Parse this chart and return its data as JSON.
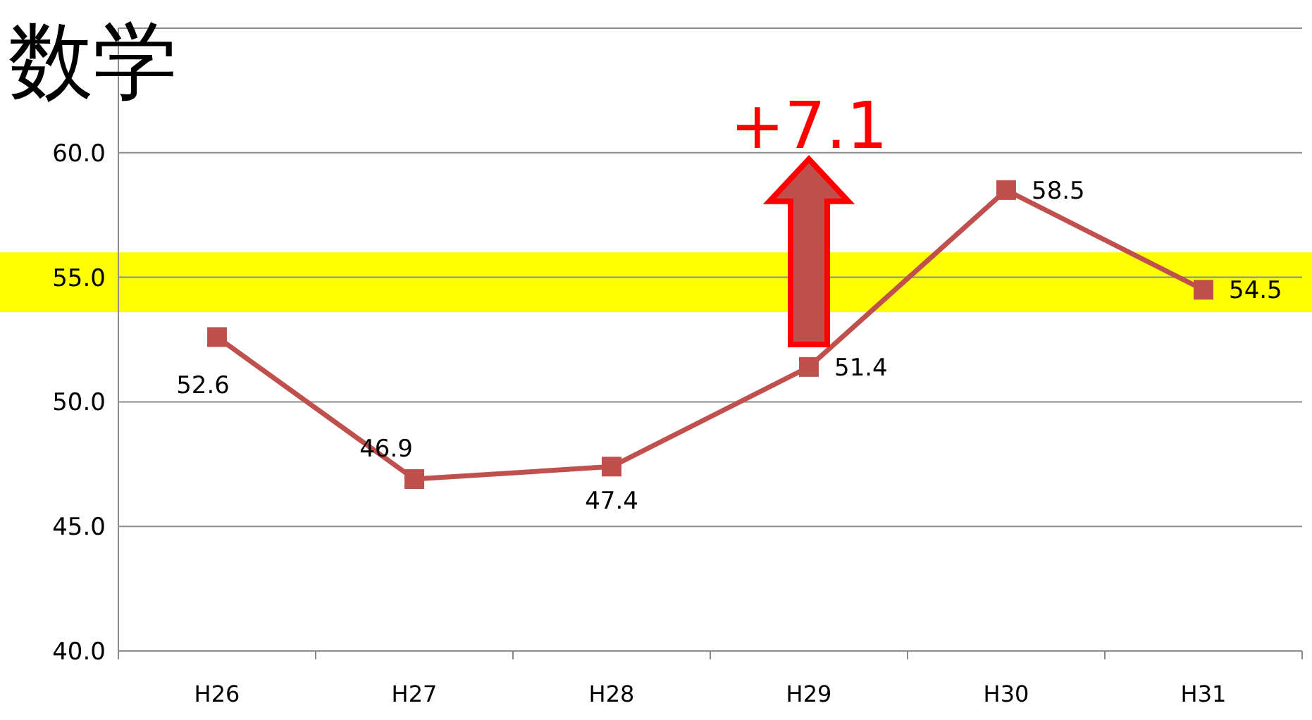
{
  "chart_data": {
    "type": "line",
    "title": "数学",
    "categories": [
      "H26",
      "H27",
      "H28",
      "H29",
      "H30",
      "H31"
    ],
    "series": [
      {
        "color": "#c0504d",
        "values": [
          52.6,
          46.9,
          47.4,
          51.4,
          58.5,
          54.5
        ]
      }
    ],
    "ylim": [
      40,
      65
    ],
    "yticks": [
      {
        "value": 40,
        "label": "40.0"
      },
      {
        "value": 45,
        "label": "45.0"
      },
      {
        "value": 50,
        "label": "50.0"
      },
      {
        "value": 55,
        "label": "55.0"
      },
      {
        "value": 60,
        "label": "60.0"
      },
      {
        "value": 65,
        "label": null
      }
    ],
    "bands": [
      {
        "axis": "y",
        "from": 53.6,
        "to": 56.0,
        "color": "#ffff00"
      }
    ],
    "annotations": [
      "+7.1"
    ],
    "grid": "y",
    "marker": "square",
    "line_style": "solid",
    "data_labels": true
  }
}
